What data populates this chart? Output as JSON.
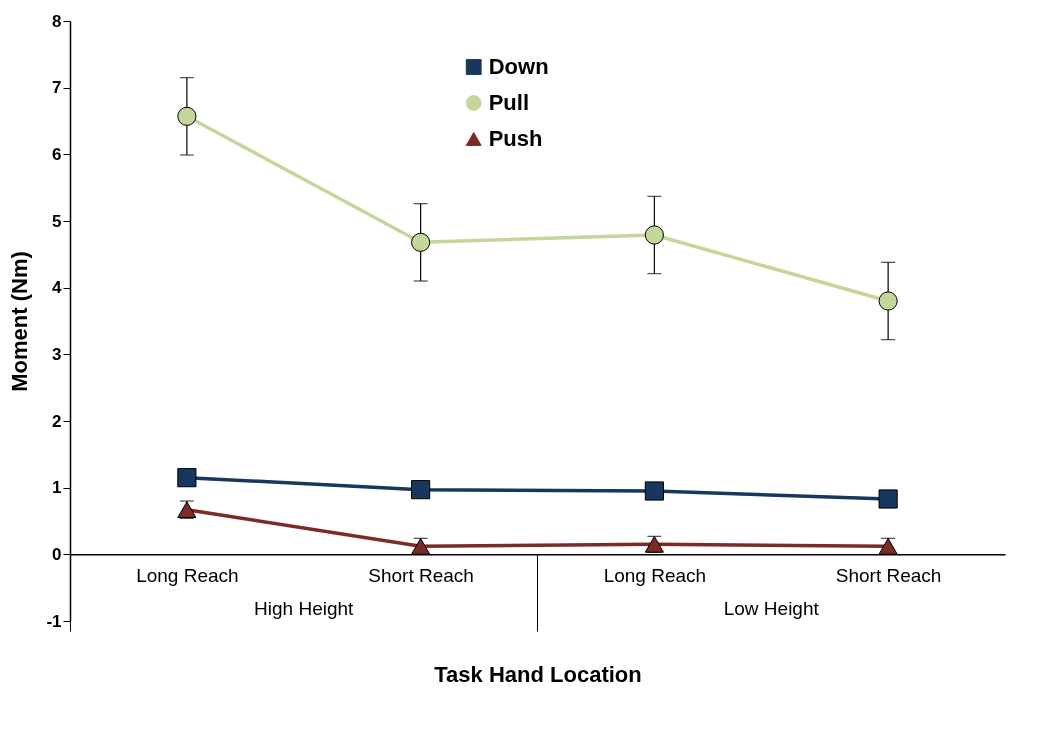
{
  "chart_data": {
    "type": "line",
    "xlabel": "Task Hand Location",
    "ylabel": "Moment (Nm)",
    "categories": [
      "Long Reach",
      "Short Reach",
      "Long Reach",
      "Short Reach"
    ],
    "annotations": [
      "High Height",
      "Low Height"
    ],
    "ylim": [
      -1,
      8
    ],
    "yticks": [
      -1,
      0,
      1,
      2,
      3,
      4,
      5,
      6,
      7,
      8
    ],
    "grid": false,
    "legend": "top",
    "series": [
      {
        "name": "Down",
        "color": "#17375e",
        "marker": "square",
        "values": [
          1.15,
          0.97,
          0.95,
          0.83
        ]
      },
      {
        "name": "Pull",
        "color": "#c4d79b",
        "marker": "circle",
        "values": [
          6.57,
          4.68,
          4.79,
          3.8
        ],
        "errors": [
          0.58,
          0.58,
          0.58,
          0.58
        ]
      },
      {
        "name": "Push",
        "color": "#7b2c26",
        "marker": "triangle",
        "values": [
          0.67,
          0.12,
          0.15,
          0.12
        ],
        "errors": [
          0.13,
          0.12,
          0.12,
          0.12
        ]
      }
    ]
  }
}
